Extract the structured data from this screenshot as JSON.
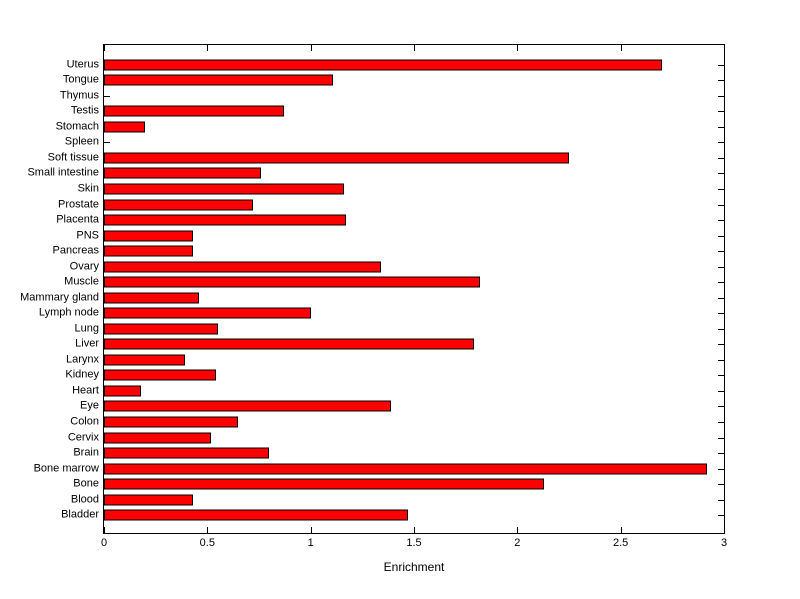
{
  "figure": {
    "background_color": "#FFFFFF",
    "axis_color": "#000000"
  },
  "chart_data": {
    "type": "bar",
    "orientation": "horizontal",
    "title": "",
    "xlabel": "Enrichment",
    "ylabel": "",
    "xlim": [
      0,
      3
    ],
    "grid": false,
    "legend": null,
    "bar_color": "#FF0000",
    "bar_edge_color": "#000000",
    "x_ticks": [
      0,
      0.5,
      1,
      1.5,
      2,
      2.5,
      3
    ],
    "x_tick_labels": [
      "0",
      "0.5",
      "1",
      "1.5",
      "2",
      "2.5",
      "3"
    ],
    "categories": [
      "Uterus",
      "Tongue",
      "Thymus",
      "Testis",
      "Stomach",
      "Spleen",
      "Soft tissue",
      "Small intestine",
      "Skin",
      "Prostate",
      "Placenta",
      "PNS",
      "Pancreas",
      "Ovary",
      "Muscle",
      "Mammary gland",
      "Lymph node",
      "Lung",
      "Liver",
      "Larynx",
      "Kidney",
      "Heart",
      "Eye",
      "Colon",
      "Cervix",
      "Brain",
      "Bone marrow",
      "Bone",
      "Blood",
      "Bladder"
    ],
    "values": [
      2.7,
      1.11,
      0,
      0.87,
      0.2,
      0,
      2.25,
      0.76,
      1.16,
      0.72,
      1.17,
      0.43,
      0.43,
      1.34,
      1.82,
      0.46,
      1.0,
      0.55,
      1.79,
      0.39,
      0.54,
      0.18,
      1.39,
      0.65,
      0.52,
      0.8,
      2.92,
      2.13,
      0.43,
      1.47
    ]
  }
}
